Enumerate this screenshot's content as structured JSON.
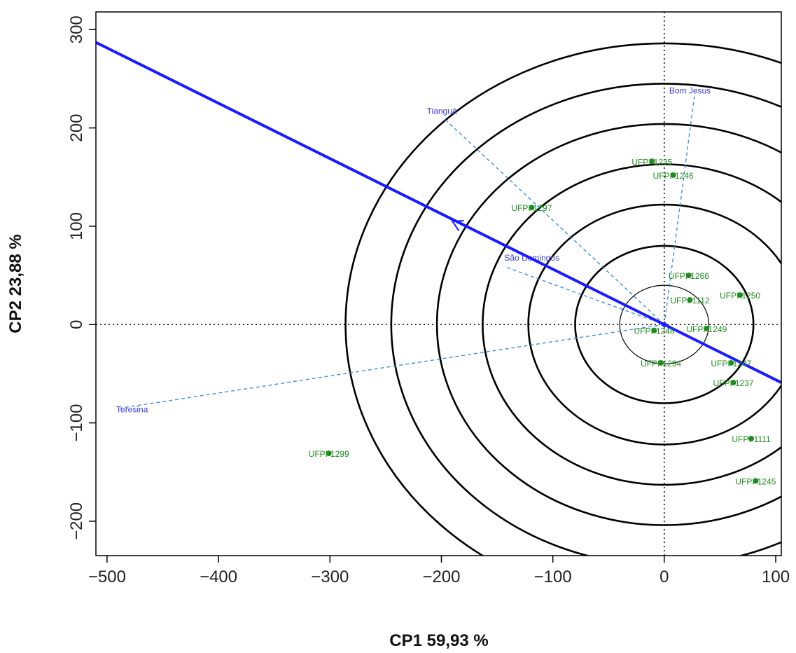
{
  "chart_data": {
    "type": "scatter",
    "title": "",
    "xlabel": "CP1 59,93 %",
    "ylabel": "CP2 23,88 %",
    "xlim": [
      -510,
      105
    ],
    "ylim": [
      -235,
      318
    ],
    "x_ticks": [
      -500,
      -400,
      -300,
      -200,
      -100,
      0,
      100
    ],
    "x_tick_labels": [
      "−500",
      "−400",
      "−300",
      "−200",
      "−100",
      "0",
      "100"
    ],
    "y_ticks": [
      300,
      200,
      100,
      0,
      -100,
      -200
    ],
    "y_tick_labels": [
      "300",
      "200",
      "100",
      "0",
      "−100",
      "−200"
    ],
    "grid": false,
    "reference_lines": {
      "x": 0,
      "y": 0,
      "style": "dotted"
    },
    "genotypes": [
      {
        "label": "UFPI-1235",
        "x": -11,
        "y": 166
      },
      {
        "label": "UFPI-1246",
        "x": 8,
        "y": 152
      },
      {
        "label": "UFPI-1297",
        "x": -119,
        "y": 119
      },
      {
        "label": "UFPI-1266",
        "x": 22,
        "y": 50
      },
      {
        "label": "UFPI-1250",
        "x": 68,
        "y": 30
      },
      {
        "label": "UFPI-1112",
        "x": 23,
        "y": 25
      },
      {
        "label": "UFPI-1249",
        "x": 38,
        "y": -4
      },
      {
        "label": "UFPI-1248",
        "x": -9,
        "y": -6
      },
      {
        "label": "UFPI-1294",
        "x": -3,
        "y": -39
      },
      {
        "label": "UFPI-1247",
        "x": 60,
        "y": -39
      },
      {
        "label": "UFPI-1237",
        "x": 62,
        "y": -59
      },
      {
        "label": "UFPI-1111",
        "x": 78,
        "y": -116
      },
      {
        "label": "UFPI-1245",
        "x": 82,
        "y": -159
      },
      {
        "label": "UFPI-1299",
        "x": -301,
        "y": -131
      }
    ],
    "environments": [
      {
        "label": "Bom Jesus",
        "x": 27,
        "y": 232
      },
      {
        "label": "Tianguá",
        "x": -198,
        "y": 210
      },
      {
        "label": "São Domingos",
        "x": -141,
        "y": 58
      },
      {
        "label": "Teresina",
        "x": -488,
        "y": -85
      }
    ],
    "ideal_axis": {
      "from": [
        -510,
        287
      ],
      "to": [
        105,
        -59
      ],
      "arrow_at": [
        -190,
        105
      ]
    },
    "concentric_circles": {
      "center": [
        0,
        0
      ],
      "radii": [
        40,
        80,
        122,
        163,
        204,
        245,
        286
      ]
    },
    "colors": {
      "genotype": "#1e8c1e",
      "environment": "#3b3bd6",
      "environment_vector": "#3a8fd9",
      "ideal_axis": "#1a1aff",
      "circles": "#000000"
    }
  }
}
